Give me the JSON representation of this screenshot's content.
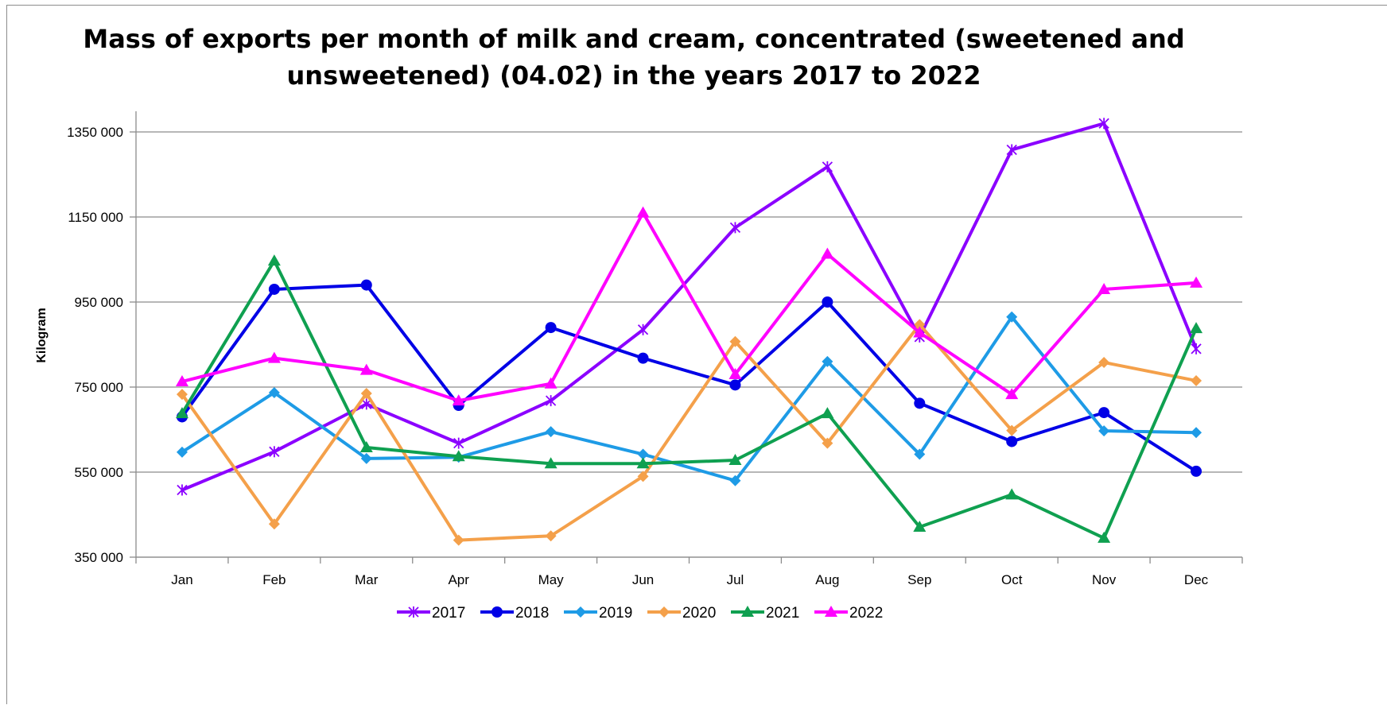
{
  "chart_data": {
    "type": "line",
    "title_line1": "Mass of exports per month of milk and cream, concentrated (sweetened and",
    "title_line2": "unsweetened) (04.02) in the years 2017 to 2022",
    "xlabel": "",
    "ylabel": "Kilogram",
    "ylim": [
      350000,
      1400000
    ],
    "yticks": [
      350000,
      550000,
      750000,
      950000,
      1150000,
      1350000
    ],
    "ytick_labels": [
      "350 000",
      "550 000",
      "750 000",
      "950 000",
      "1150 000",
      "1350 000"
    ],
    "categories": [
      "Jan",
      "Feb",
      "Mar",
      "Apr",
      "May",
      "Jun",
      "Jul",
      "Aug",
      "Sep",
      "Oct",
      "Nov",
      "Dec"
    ],
    "grid": true,
    "legend_position": "bottom",
    "series": [
      {
        "name": "2017",
        "color": "#8B00FF",
        "marker": "star",
        "values": [
          508000,
          598000,
          710000,
          618000,
          718000,
          885000,
          1125000,
          1268000,
          868000,
          1308000,
          1370000,
          840000
        ]
      },
      {
        "name": "2018",
        "color": "#0000E6",
        "marker": "circle",
        "values": [
          680000,
          980000,
          990000,
          707000,
          890000,
          818000,
          755000,
          950000,
          712000,
          622000,
          690000,
          552000
        ]
      },
      {
        "name": "2019",
        "color": "#1E9BE6",
        "marker": "diamond",
        "values": [
          597000,
          737000,
          582000,
          585000,
          645000,
          592000,
          530000,
          810000,
          592000,
          915000,
          647000,
          643000
        ]
      },
      {
        "name": "2020",
        "color": "#F4A04A",
        "marker": "diamond",
        "values": [
          733000,
          428000,
          735000,
          390000,
          400000,
          540000,
          857000,
          618000,
          897000,
          648000,
          808000,
          765000
        ]
      },
      {
        "name": "2021",
        "color": "#0FA050",
        "marker": "triangle",
        "values": [
          688000,
          1047000,
          608000,
          587000,
          570000,
          570000,
          578000,
          688000,
          421000,
          497000,
          395000,
          888000
        ]
      },
      {
        "name": "2022",
        "color": "#FF00FF",
        "marker": "triangle",
        "values": [
          763000,
          818000,
          790000,
          718000,
          758000,
          1160000,
          780000,
          1063000,
          878000,
          733000,
          980000,
          995000
        ]
      }
    ]
  }
}
